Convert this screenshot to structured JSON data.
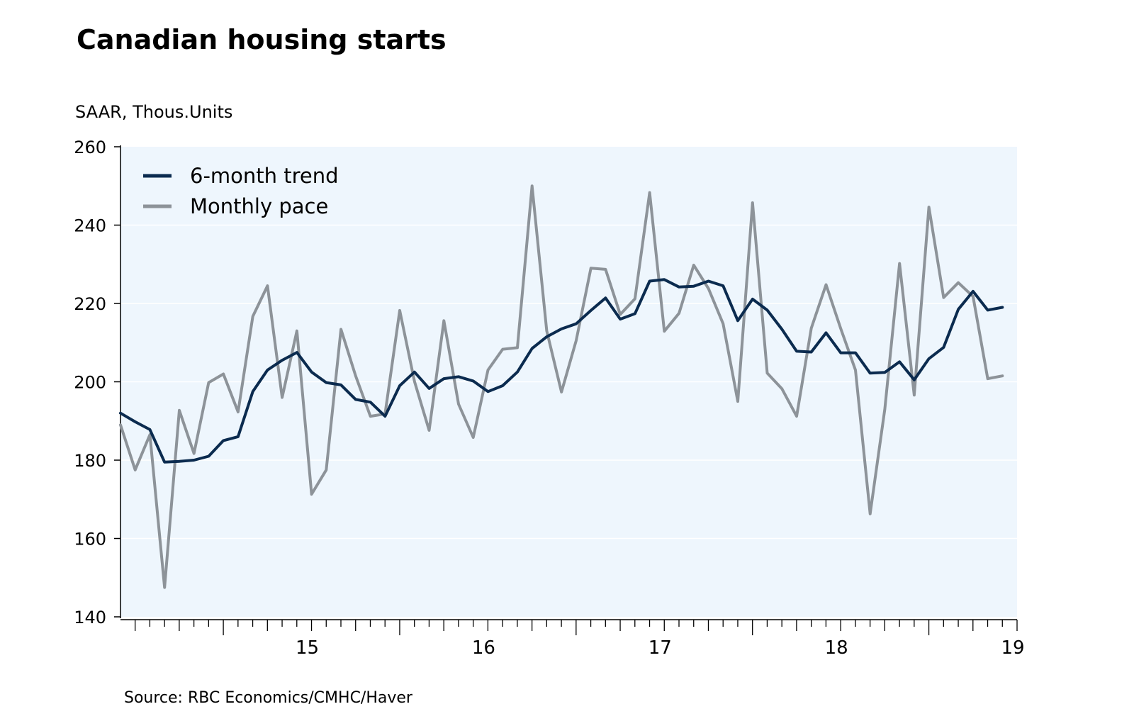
{
  "chart_data": {
    "type": "line",
    "title": "Canadian housing starts",
    "ylabel": "SAAR, Thous.Units",
    "xlabel": "",
    "source": "Source:  RBC Economics/CMHC/Haver",
    "ylim": [
      140,
      260
    ],
    "yticks": [
      140,
      160,
      180,
      200,
      220,
      240,
      260
    ],
    "xlim": [
      2014.417,
      2019.5
    ],
    "xticks": [
      {
        "label": "15",
        "year": 2015
      },
      {
        "label": "16",
        "year": 2016
      },
      {
        "label": "17",
        "year": 2017
      },
      {
        "label": "18",
        "year": 2018
      },
      {
        "label": "19",
        "year": 2019
      }
    ],
    "x_start": "2014-06",
    "x_step": "1 month",
    "legend_position": "top-left",
    "grid": true,
    "colors": {
      "trend": "#0b2b4f",
      "monthly": "#8d9399",
      "plot_bg": "#eef6fd",
      "grid": "#ffffff"
    },
    "series": [
      {
        "name": "6-month trend",
        "key": "trend",
        "values": [
          192,
          189.8,
          187.8,
          179.5,
          179.7,
          180,
          181,
          185,
          186,
          197.5,
          203,
          205.5,
          207.5,
          202.5,
          199.8,
          199.2,
          195.5,
          194.8,
          191.2,
          199,
          202.5,
          198.3,
          200.8,
          201.3,
          200.2,
          197.5,
          199,
          202.5,
          208.5,
          211.5,
          213.5,
          214.8,
          218.2,
          221.4,
          216,
          217.4,
          225.7,
          226.1,
          224.2,
          224.4,
          225.7,
          224.5,
          215.6,
          221.1,
          218.3,
          213.4,
          207.8,
          207.6,
          212.5,
          207.4,
          207.4,
          202.2,
          202.4,
          205.1,
          200.5,
          205.9,
          208.8,
          218.5,
          223.1,
          218.3,
          219
        ]
      },
      {
        "name": "Monthly pace",
        "key": "monthly",
        "values": [
          189,
          177.5,
          186.5,
          147.5,
          192.7,
          181.7,
          199.8,
          202,
          192.3,
          216.7,
          224.5,
          196,
          213,
          171.3,
          177.5,
          213.4,
          201.5,
          191.2,
          191.8,
          218.2,
          200.1,
          187.6,
          215.6,
          194.3,
          185.8,
          203,
          208.3,
          208.7,
          250,
          213,
          197.4,
          210.5,
          229,
          228.7,
          217.2,
          221.2,
          248.3,
          212.9,
          217.5,
          229.8,
          223.8,
          214.8,
          195,
          245.7,
          202.2,
          198.2,
          191.2,
          213.7,
          224.8,
          213.6,
          203,
          166.3,
          193,
          230.2,
          196.6,
          244.6,
          221.5,
          225.3,
          221.8,
          200.8,
          201.5
        ]
      }
    ]
  }
}
